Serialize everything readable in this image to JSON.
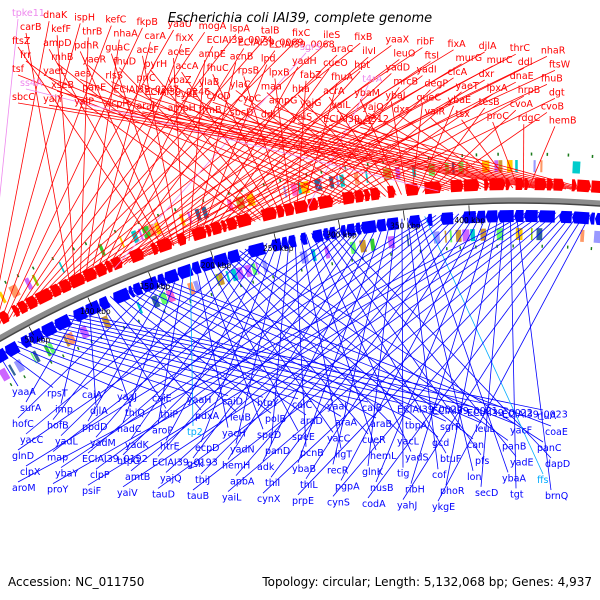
{
  "title": "Escherichia coli IAI39, complete genome",
  "footer": {
    "accession": "Accession: NC_011750",
    "topology": "Topology: circular; Length: 5,132,068 bp; Genes: 4,937"
  },
  "colors": {
    "forward_strand": "#ff0000",
    "reverse_strand": "#0000ff",
    "backbone": "#8c8c8c",
    "rna_label": "#ee88ee",
    "trna_label": "#00aaff"
  },
  "scale_ticks": [
    "50 kbp",
    "100 kbp",
    "150 kbp",
    "200 kbp",
    "250 kbp",
    "300 kbp",
    "350 kbp",
    "400 kbp"
  ],
  "top_labels": [
    {
      "t": "tpke11",
      "c": "#ee88ee"
    },
    {
      "t": "dnaK",
      "c": "red"
    },
    {
      "t": "ispH",
      "c": "red"
    },
    {
      "t": "kefC",
      "c": "red"
    },
    {
      "t": "fkpB",
      "c": "red"
    },
    {
      "t": "yaaU",
      "c": "red"
    },
    {
      "t": "mogA",
      "c": "red"
    },
    {
      "t": "lspA",
      "c": "red"
    },
    {
      "t": "talB",
      "c": "red"
    },
    {
      "t": "fixC",
      "c": "red"
    },
    {
      "t": "ileS",
      "c": "red"
    },
    {
      "t": "fixB",
      "c": "red"
    },
    {
      "t": "yaaX",
      "c": "red"
    },
    {
      "t": "ribF",
      "c": "red"
    },
    {
      "t": "fixA",
      "c": "red"
    },
    {
      "t": "djlA",
      "c": "red"
    },
    {
      "t": "thrC",
      "c": "red"
    },
    {
      "t": "nhaR",
      "c": "red"
    },
    {
      "t": "carB",
      "c": "red"
    },
    {
      "t": "kefF",
      "c": "red"
    },
    {
      "t": "thrB",
      "c": "red"
    },
    {
      "t": "nhaA",
      "c": "red"
    },
    {
      "t": "carA",
      "c": "red"
    },
    {
      "t": "fixX",
      "c": "red"
    },
    {
      "t": "ECIAI39_0074",
      "c": "red"
    },
    {
      "t": "ECIAI39_0069",
      "c": "red"
    },
    {
      "t": "ECIAI39_0068",
      "c": "red"
    },
    {
      "t": "sgrS",
      "c": "#ee88ee"
    },
    {
      "t": "araC",
      "c": "red"
    },
    {
      "t": "ilvI",
      "c": "red"
    },
    {
      "t": "leuO",
      "c": "red"
    },
    {
      "t": "ftsI",
      "c": "red"
    },
    {
      "t": "murG",
      "c": "red"
    },
    {
      "t": "murC",
      "c": "red"
    },
    {
      "t": "ddl",
      "c": "red"
    },
    {
      "t": "ftsW",
      "c": "red"
    },
    {
      "t": "ftsZ",
      "c": "red"
    },
    {
      "t": "ampD",
      "c": "red"
    },
    {
      "t": "pdhR",
      "c": "red"
    },
    {
      "t": "guaC",
      "c": "red"
    },
    {
      "t": "aceF",
      "c": "red"
    },
    {
      "t": "aceE",
      "c": "red"
    },
    {
      "t": "ampE",
      "c": "red"
    },
    {
      "t": "acnB",
      "c": "red"
    },
    {
      "t": "lpd",
      "c": "red"
    },
    {
      "t": "yadH",
      "c": "red"
    },
    {
      "t": "cueO",
      "c": "red"
    },
    {
      "t": "hpt",
      "c": "red"
    },
    {
      "t": "yadD",
      "c": "red"
    },
    {
      "t": "yadI",
      "c": "red"
    },
    {
      "t": "clcA",
      "c": "red"
    },
    {
      "t": "dxr",
      "c": "red"
    },
    {
      "t": "dnaE",
      "c": "red"
    },
    {
      "t": "fhuB",
      "c": "red"
    },
    {
      "t": "frr",
      "c": "red"
    },
    {
      "t": "rnhB",
      "c": "red"
    },
    {
      "t": "yaeR",
      "c": "red"
    },
    {
      "t": "fhuD",
      "c": "red"
    },
    {
      "t": "pyrH",
      "c": "red"
    },
    {
      "t": "accA",
      "c": "red"
    },
    {
      "t": "fhuC",
      "c": "red"
    },
    {
      "t": "rpsB",
      "c": "red"
    },
    {
      "t": "lpxB",
      "c": "red"
    },
    {
      "t": "fabZ",
      "c": "red"
    },
    {
      "t": "fhuA",
      "c": "red"
    },
    {
      "t": "t4rA",
      "c": "#ee88ee"
    },
    {
      "t": "mrcB",
      "c": "red"
    },
    {
      "t": "degP",
      "c": "red"
    },
    {
      "t": "yaeT",
      "c": "red"
    },
    {
      "t": "lpxA",
      "c": "red"
    },
    {
      "t": "hrpB",
      "c": "red"
    },
    {
      "t": "dgt",
      "c": "red"
    },
    {
      "t": "tsf",
      "c": "red"
    },
    {
      "t": "yaeL",
      "c": "red"
    },
    {
      "t": "aes",
      "c": "red"
    },
    {
      "t": "rlsS",
      "c": "red"
    },
    {
      "t": "priC",
      "c": "red"
    },
    {
      "t": "ybaZ",
      "c": "red"
    },
    {
      "t": "ylaB",
      "c": "red"
    },
    {
      "t": "ylaC",
      "c": "red"
    },
    {
      "t": "maa",
      "c": "red"
    },
    {
      "t": "hha",
      "c": "red"
    },
    {
      "t": "acrA",
      "c": "red"
    },
    {
      "t": "ybaM",
      "c": "red"
    },
    {
      "t": "ybaJ",
      "c": "red"
    },
    {
      "t": "queC",
      "c": "red"
    },
    {
      "t": "ybaE",
      "c": "red"
    },
    {
      "t": "tesB",
      "c": "red"
    },
    {
      "t": "cvoA",
      "c": "red"
    },
    {
      "t": "cvoB",
      "c": "red"
    },
    {
      "t": "ss4A",
      "c": "#ee88ee"
    },
    {
      "t": "xseB",
      "c": "red"
    },
    {
      "t": "panE",
      "c": "red"
    },
    {
      "t": "ECIAI39_0247",
      "c": "red"
    },
    {
      "t": "ECIAI39_0246",
      "c": "red"
    },
    {
      "t": "cyoE",
      "c": "red"
    },
    {
      "t": "cyoD",
      "c": "red"
    },
    {
      "t": "cyoC",
      "c": "red"
    },
    {
      "t": "ampG",
      "c": "red"
    },
    {
      "t": "yajG",
      "c": "red"
    },
    {
      "t": "vaiL",
      "c": "red"
    },
    {
      "t": "yajO",
      "c": "red"
    },
    {
      "t": "dxs",
      "c": "red"
    },
    {
      "t": "vaiR",
      "c": "red"
    },
    {
      "t": "tsx",
      "c": "red"
    },
    {
      "t": "proC",
      "c": "red"
    },
    {
      "t": "rdgC",
      "c": "red"
    },
    {
      "t": "hemB",
      "c": "red"
    },
    {
      "t": "sbcC",
      "c": "red"
    },
    {
      "t": "yaiY",
      "c": "red"
    },
    {
      "t": "yaiP",
      "c": "red"
    },
    {
      "t": "acpH",
      "c": "red"
    },
    {
      "t": "araJ",
      "c": "red"
    },
    {
      "t": "ampH",
      "c": "red"
    },
    {
      "t": "frmB",
      "c": "red"
    },
    {
      "t": "sbcD",
      "c": "red"
    },
    {
      "t": "ddl",
      "c": "red"
    },
    {
      "t": "yaiS",
      "c": "red"
    },
    {
      "t": "ECIAI39_0312",
      "c": "red"
    },
    {
      "t": "lacZ",
      "c": "red"
    }
  ],
  "bottom_labels": [
    {
      "t": "yaaA",
      "c": "blue"
    },
    {
      "t": "rpsT",
      "c": "blue"
    },
    {
      "t": "caiA",
      "c": "blue"
    },
    {
      "t": "yaaJ",
      "c": "blue"
    },
    {
      "t": "caiE",
      "c": "blue"
    },
    {
      "t": "yaaH",
      "c": "blue"
    },
    {
      "t": "caiD",
      "c": "blue"
    },
    {
      "t": "htpY",
      "c": "blue"
    },
    {
      "t": "caiC",
      "c": "blue"
    },
    {
      "t": "yaaI",
      "c": "blue"
    },
    {
      "t": "caiB",
      "c": "blue"
    },
    {
      "t": "ECIAI39_0020",
      "c": "blue"
    },
    {
      "t": "ECIAI39_0021",
      "c": "blue"
    },
    {
      "t": "ECIAI39_0022",
      "c": "blue"
    },
    {
      "t": "ECIAI39_0023",
      "c": "blue"
    },
    {
      "t": "rluA",
      "c": "blue"
    },
    {
      "t": "surA",
      "c": "blue"
    },
    {
      "t": "imp",
      "c": "blue"
    },
    {
      "t": "djlA",
      "c": "blue"
    },
    {
      "t": "thiQ",
      "c": "blue"
    },
    {
      "t": "thiP",
      "c": "blue"
    },
    {
      "t": "pdxA",
      "c": "blue"
    },
    {
      "t": "leuB",
      "c": "blue"
    },
    {
      "t": "polB",
      "c": "blue"
    },
    {
      "t": "araD",
      "c": "blue"
    },
    {
      "t": "araA",
      "c": "blue"
    },
    {
      "t": "araB",
      "c": "blue"
    },
    {
      "t": "tbpA",
      "c": "blue"
    },
    {
      "t": "sgrR",
      "c": "blue"
    },
    {
      "t": "leuL",
      "c": "blue"
    },
    {
      "t": "yacF",
      "c": "blue"
    },
    {
      "t": "coaE",
      "c": "blue"
    },
    {
      "t": "hofC",
      "c": "blue"
    },
    {
      "t": "hofB",
      "c": "blue"
    },
    {
      "t": "ppdD",
      "c": "blue"
    },
    {
      "t": "nadC",
      "c": "blue"
    },
    {
      "t": "aroP",
      "c": "blue"
    },
    {
      "t": "tp2",
      "c": "#00aaff"
    },
    {
      "t": "yacH",
      "c": "blue"
    },
    {
      "t": "speD",
      "c": "blue"
    },
    {
      "t": "speE",
      "c": "blue"
    },
    {
      "t": "yacC",
      "c": "blue"
    },
    {
      "t": "cueR",
      "c": "blue"
    },
    {
      "t": "yacL",
      "c": "blue"
    },
    {
      "t": "gcd",
      "c": "blue"
    },
    {
      "t": "can",
      "c": "blue"
    },
    {
      "t": "panB",
      "c": "blue"
    },
    {
      "t": "panC",
      "c": "blue"
    },
    {
      "t": "yacC",
      "c": "blue"
    },
    {
      "t": "yadL",
      "c": "blue"
    },
    {
      "t": "yadM",
      "c": "blue"
    },
    {
      "t": "yadK",
      "c": "blue"
    },
    {
      "t": "htrE",
      "c": "blue"
    },
    {
      "t": "ecpD",
      "c": "blue"
    },
    {
      "t": "yadN",
      "c": "blue"
    },
    {
      "t": "panD",
      "c": "blue"
    },
    {
      "t": "pcnB",
      "c": "blue"
    },
    {
      "t": "ligT",
      "c": "blue"
    },
    {
      "t": "hemL",
      "c": "blue"
    },
    {
      "t": "yadS",
      "c": "blue"
    },
    {
      "t": "btuF",
      "c": "blue"
    },
    {
      "t": "pfs",
      "c": "blue"
    },
    {
      "t": "yadE",
      "c": "blue"
    },
    {
      "t": "dapD",
      "c": "blue"
    },
    {
      "t": "glnD",
      "c": "blue"
    },
    {
      "t": "map",
      "c": "blue"
    },
    {
      "t": "ECIAI39_0192",
      "c": "blue"
    },
    {
      "t": "htpG",
      "c": "blue"
    },
    {
      "t": "ECIAI39_0193",
      "c": "blue"
    },
    {
      "t": "gsk",
      "c": "blue"
    },
    {
      "t": "hemH",
      "c": "blue"
    },
    {
      "t": "adk",
      "c": "blue"
    },
    {
      "t": "ybaB",
      "c": "blue"
    },
    {
      "t": "recR",
      "c": "blue"
    },
    {
      "t": "glnK",
      "c": "blue"
    },
    {
      "t": "tig",
      "c": "blue"
    },
    {
      "t": "cof",
      "c": "blue"
    },
    {
      "t": "lon",
      "c": "blue"
    },
    {
      "t": "ybaA",
      "c": "blue"
    },
    {
      "t": "ffs",
      "c": "#00aaff"
    },
    {
      "t": "clpX",
      "c": "blue"
    },
    {
      "t": "ybaY",
      "c": "blue"
    },
    {
      "t": "clpP",
      "c": "blue"
    },
    {
      "t": "amtB",
      "c": "blue"
    },
    {
      "t": "yajQ",
      "c": "blue"
    },
    {
      "t": "thiJ",
      "c": "blue"
    },
    {
      "t": "apbA",
      "c": "blue"
    },
    {
      "t": "thiI",
      "c": "blue"
    },
    {
      "t": "thiL",
      "c": "blue"
    },
    {
      "t": "pgpA",
      "c": "blue"
    },
    {
      "t": "nusB",
      "c": "blue"
    },
    {
      "t": "ribH",
      "c": "blue"
    },
    {
      "t": "phoR",
      "c": "blue"
    },
    {
      "t": "secD",
      "c": "blue"
    },
    {
      "t": "tgt",
      "c": "blue"
    },
    {
      "t": "brnQ",
      "c": "blue"
    },
    {
      "t": "aroM",
      "c": "blue"
    },
    {
      "t": "proY",
      "c": "blue"
    },
    {
      "t": "psiF",
      "c": "blue"
    },
    {
      "t": "yaiV",
      "c": "blue"
    },
    {
      "t": "tauD",
      "c": "blue"
    },
    {
      "t": "tauB",
      "c": "blue"
    },
    {
      "t": "yaiL",
      "c": "blue"
    },
    {
      "t": "cynX",
      "c": "blue"
    },
    {
      "t": "prpE",
      "c": "blue"
    },
    {
      "t": "cynS",
      "c": "blue"
    },
    {
      "t": "codA",
      "c": "blue"
    },
    {
      "t": "yahJ",
      "c": "blue"
    },
    {
      "t": "ykgE",
      "c": "blue"
    }
  ]
}
